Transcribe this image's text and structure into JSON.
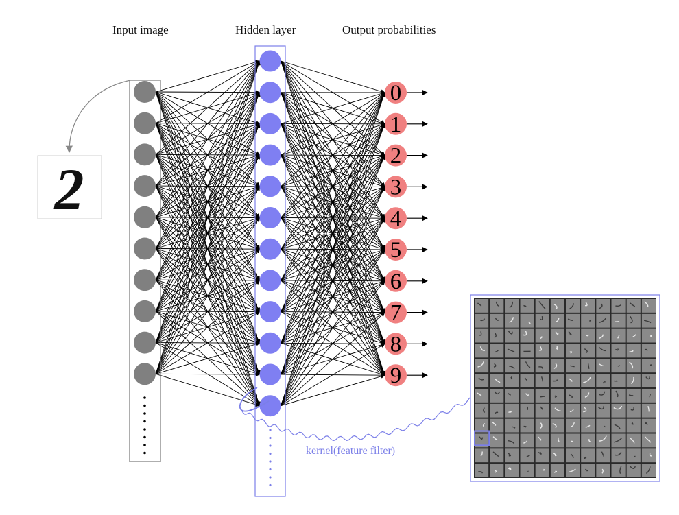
{
  "headers": {
    "input": "Input image",
    "hidden": "Hidden layer",
    "output": "Output probabilities"
  },
  "input_sample": {
    "digit": "2"
  },
  "output_labels": [
    "0",
    "1",
    "2",
    "3",
    "4",
    "5",
    "6",
    "7",
    "8",
    "9"
  ],
  "kernel_label": "kernel(feature filter)",
  "colors": {
    "input_node": "#808080",
    "hidden_node": "#7f7ff2",
    "output_node": "#f08080",
    "accent": "#7b7fe8",
    "edge": "#000000"
  },
  "layers": {
    "input_visible_nodes": 10,
    "hidden_visible_nodes": 12,
    "output_nodes": 10
  },
  "filter_grid": {
    "rows": 12,
    "cols": 12
  }
}
